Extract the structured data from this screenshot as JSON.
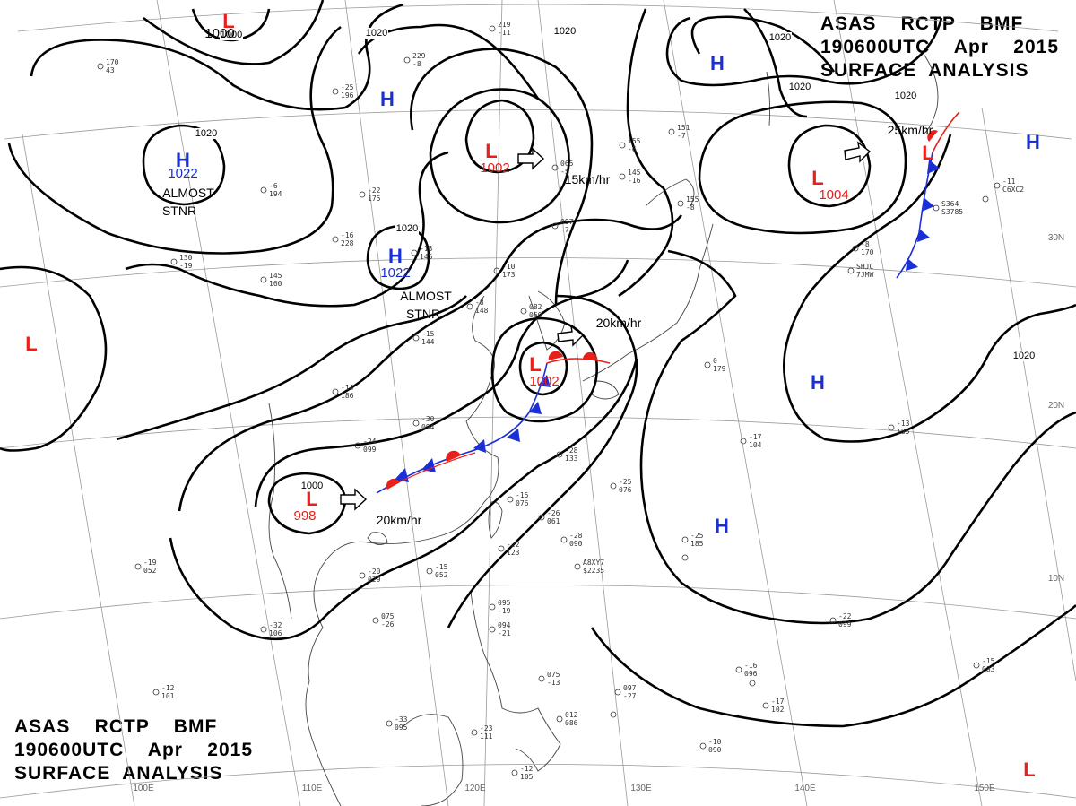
{
  "header_top_right": {
    "line1": "ASAS    RCTP    BMF",
    "line2": "190600UTC    Apr    2015",
    "line3": "SURFACE  ANALYSIS"
  },
  "header_bottom_left": {
    "line1": "ASAS    RCTP    BMF",
    "line2": "190600UTC    Apr    2015",
    "line3": "SURFACE  ANALYSIS"
  },
  "colors": {
    "low": "#e8201c",
    "high": "#1a2fd6",
    "isobar": "#000000",
    "coast": "#444444",
    "grid": "#9a9a9a"
  },
  "systems": [
    {
      "kind": "L",
      "pressure": "1000",
      "press_color": "#000000"
    },
    {
      "kind": "L",
      "pressure": "1002",
      "press_color": "#e8201c"
    },
    {
      "kind": "L",
      "pressure": "1004",
      "press_color": "#e8201c"
    },
    {
      "kind": "L",
      "pressure": "1002",
      "press_color": "#e8201c"
    },
    {
      "kind": "L",
      "pressure": "998",
      "press_color": "#e8201c"
    },
    {
      "kind": "L",
      "pressure": "",
      "press_color": "#e8201c"
    },
    {
      "kind": "L",
      "pressure": "",
      "press_color": "#e8201c"
    },
    {
      "kind": "L",
      "pressure": "",
      "press_color": "#e8201c"
    },
    {
      "kind": "H",
      "pressure": "1022",
      "press_color": "#1a2fd6"
    },
    {
      "kind": "H",
      "pressure": "1022",
      "press_color": "#1a2fd6"
    },
    {
      "kind": "H",
      "pressure": "",
      "press_color": "#1a2fd6"
    },
    {
      "kind": "H",
      "pressure": "",
      "press_color": "#1a2fd6"
    },
    {
      "kind": "H",
      "pressure": "",
      "press_color": "#1a2fd6"
    },
    {
      "kind": "H",
      "pressure": "",
      "press_color": "#1a2fd6"
    },
    {
      "kind": "H",
      "pressure": "",
      "press_color": "#1a2fd6"
    }
  ],
  "isobar_labels": [
    "1000",
    "1020",
    "1020",
    "1020",
    "1020",
    "1020",
    "1020",
    "1020",
    "1000",
    "1020"
  ],
  "annotations": [
    "ALMOST",
    "STNR",
    "ALMOST",
    "STNR",
    "15km/hr",
    "20km/hr",
    "20km/hr",
    "25km/hr"
  ],
  "lat_labels": [
    "30N",
    "20N",
    "10N"
  ],
  "lon_labels": [
    "100E",
    "110E",
    "120E",
    "130E",
    "140E",
    "150E"
  ],
  "station_obs": [
    "219",
    "-11",
    "229",
    "-8",
    "170",
    "43",
    "-25",
    "196",
    "-6",
    "194",
    "-22",
    "175",
    "-16",
    "228",
    "-13",
    "145",
    "-10",
    "173",
    "097",
    "-7",
    "065",
    "-5",
    "155",
    "-6",
    "145",
    "-16",
    "151",
    "-7",
    "155",
    "-8",
    "145",
    "160",
    "130",
    "-19",
    "082",
    "060",
    "-8",
    "148",
    "-15",
    "144",
    "-14",
    "186",
    "-24",
    "099",
    "-30",
    "094",
    "-28",
    "133",
    "-25",
    "076",
    "-15",
    "076",
    "-26",
    "061",
    "-22",
    "123",
    "-28",
    "090",
    "-15",
    "052",
    "-20",
    "029",
    "-32",
    "106",
    "075",
    "-26",
    "095",
    "-19",
    "094",
    "-21",
    "075",
    "-13",
    "097",
    "-27",
    "012",
    "086",
    "-33",
    "095",
    "-23",
    "111",
    "-12",
    "105",
    "-12",
    "101",
    "-17",
    "104",
    "-25",
    "185",
    "-13",
    "185",
    "0",
    "179",
    "-8",
    "170",
    "-16",
    "096",
    "-17",
    "102",
    "-15",
    "083",
    "-10",
    "090",
    "-22",
    "099",
    "-19",
    "052",
    "-11",
    "C6XC2",
    "SHJC",
    "7JMW",
    "S364",
    "S3785",
    "A8XY7",
    "$2235"
  ]
}
